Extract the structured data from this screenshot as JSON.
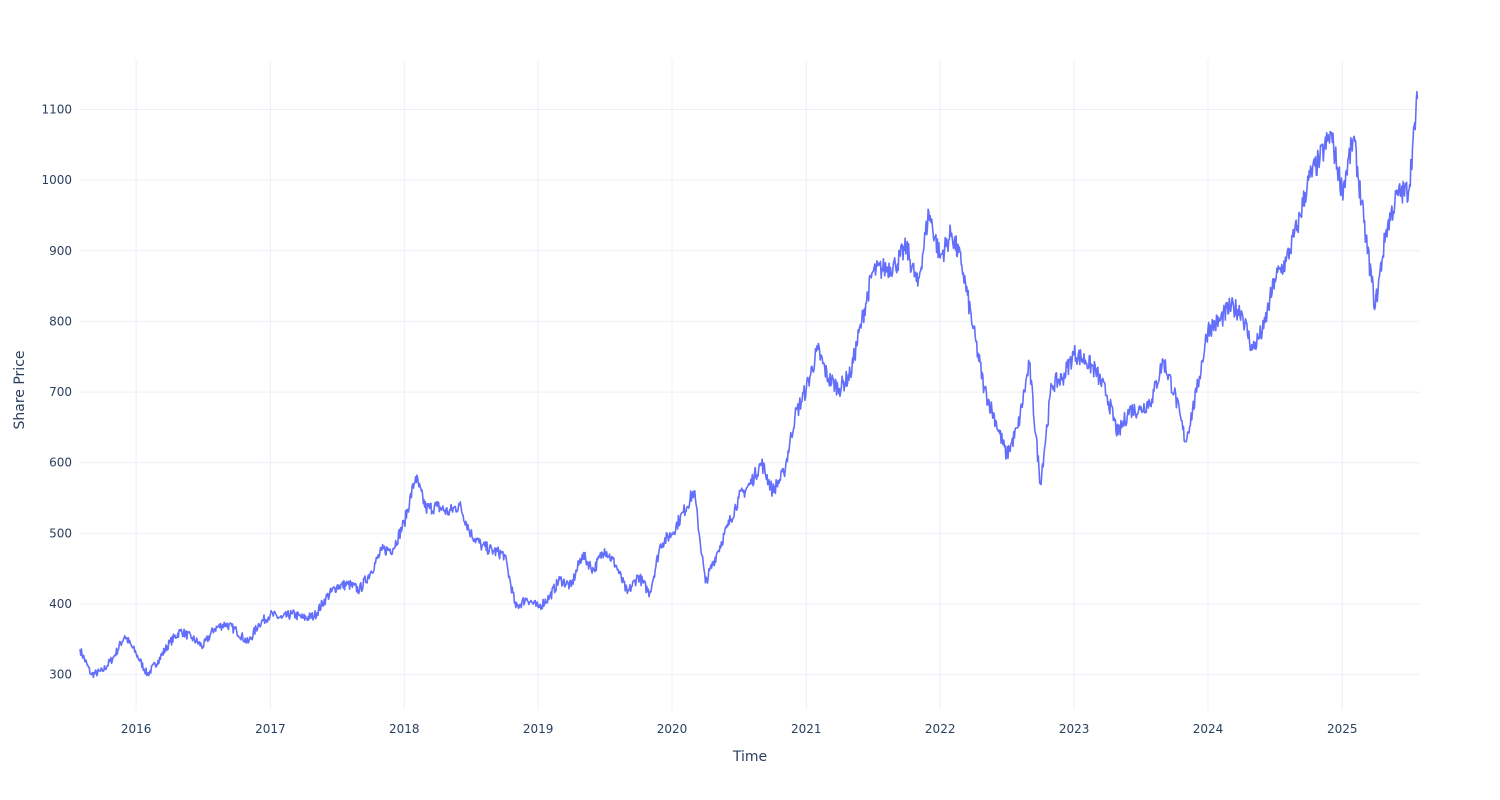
{
  "chart_data": {
    "type": "line",
    "xlabel": "Time",
    "ylabel": "Share Price",
    "x_range": [
      "2015-08-01",
      "2025-08-01"
    ],
    "ylim": [
      250,
      1170
    ],
    "x_ticks": [
      "2016",
      "2017",
      "2018",
      "2019",
      "2020",
      "2021",
      "2022",
      "2023",
      "2024",
      "2025"
    ],
    "y_ticks": [
      300,
      400,
      500,
      600,
      700,
      800,
      900,
      1000,
      1100
    ],
    "grid": true,
    "legend": "none",
    "line_color": "#636efa",
    "series": [
      {
        "x": [
          "2015-08-01",
          "2015-09-01",
          "2015-10-01",
          "2015-11-01",
          "2015-12-01",
          "2016-01-01",
          "2016-02-01",
          "2016-03-01",
          "2016-04-01",
          "2016-05-01",
          "2016-06-01",
          "2016-07-01",
          "2016-08-01",
          "2016-09-01",
          "2016-10-01",
          "2016-11-01",
          "2016-12-01",
          "2017-01-01",
          "2017-02-01",
          "2017-03-01",
          "2017-04-01",
          "2017-05-01",
          "2017-06-01",
          "2017-07-01",
          "2017-08-01",
          "2017-09-01",
          "2017-10-01",
          "2017-11-01",
          "2017-12-01",
          "2018-01-01",
          "2018-02-01",
          "2018-03-01",
          "2018-04-01",
          "2018-05-01",
          "2018-06-01",
          "2018-07-01",
          "2018-08-01",
          "2018-09-01",
          "2018-10-01",
          "2018-11-01",
          "2018-12-01",
          "2019-01-01",
          "2019-02-01",
          "2019-03-01",
          "2019-04-01",
          "2019-05-01",
          "2019-06-01",
          "2019-07-01",
          "2019-08-01",
          "2019-09-01",
          "2019-10-01",
          "2019-11-01",
          "2019-12-01",
          "2020-01-01",
          "2020-02-01",
          "2020-03-01",
          "2020-04-01",
          "2020-05-01",
          "2020-06-01",
          "2020-07-01",
          "2020-08-01",
          "2020-09-01",
          "2020-10-01",
          "2020-11-01",
          "2020-12-01",
          "2021-01-01",
          "2021-02-01",
          "2021-03-01",
          "2021-04-01",
          "2021-05-01",
          "2021-06-01",
          "2021-07-01",
          "2021-08-01",
          "2021-09-01",
          "2021-10-01",
          "2021-11-01",
          "2021-12-01",
          "2022-01-01",
          "2022-02-01",
          "2022-03-01",
          "2022-04-01",
          "2022-05-01",
          "2022-06-01",
          "2022-07-01",
          "2022-08-01",
          "2022-09-01",
          "2022-10-01",
          "2022-11-01",
          "2022-12-01",
          "2023-01-01",
          "2023-02-01",
          "2023-03-01",
          "2023-04-01",
          "2023-05-01",
          "2023-06-01",
          "2023-07-01",
          "2023-08-01",
          "2023-09-01",
          "2023-10-01",
          "2023-11-01",
          "2023-12-01",
          "2024-01-01",
          "2024-02-01",
          "2024-03-01",
          "2024-04-01",
          "2024-05-01",
          "2024-06-01",
          "2024-07-01",
          "2024-08-01",
          "2024-09-01",
          "2024-10-01",
          "2024-11-01",
          "2024-12-01",
          "2025-01-01",
          "2025-02-01",
          "2025-03-01",
          "2025-04-01",
          "2025-05-01",
          "2025-06-01",
          "2025-07-01",
          "2025-07-25"
        ],
        "y": [
          336,
          300,
          305,
          325,
          355,
          330,
          300,
          320,
          345,
          362,
          352,
          340,
          365,
          372,
          362,
          345,
          372,
          385,
          380,
          386,
          380,
          383,
          408,
          425,
          428,
          420,
          445,
          476,
          478,
          515,
          580,
          535,
          538,
          530,
          540,
          500,
          482,
          475,
          470,
          395,
          408,
          395,
          410,
          435,
          425,
          470,
          448,
          478,
          455,
          415,
          440,
          415,
          485,
          500,
          530,
          560,
          430,
          470,
          510,
          550,
          570,
          600,
          560,
          585,
          665,
          705,
          760,
          720,
          705,
          725,
          800,
          870,
          875,
          880,
          905,
          850,
          955,
          890,
          925,
          880,
          790,
          705,
          660,
          610,
          650,
          740,
          570,
          710,
          720,
          755,
          745,
          730,
          695,
          640,
          675,
          675,
          690,
          745,
          700,
          630,
          700,
          790,
          800,
          820,
          815,
          760,
          790,
          860,
          885,
          935,
          1000,
          1030,
          1065,
          985,
          1060,
          940,
          820,
          930,
          980,
          985,
          1115
        ]
      }
    ]
  }
}
